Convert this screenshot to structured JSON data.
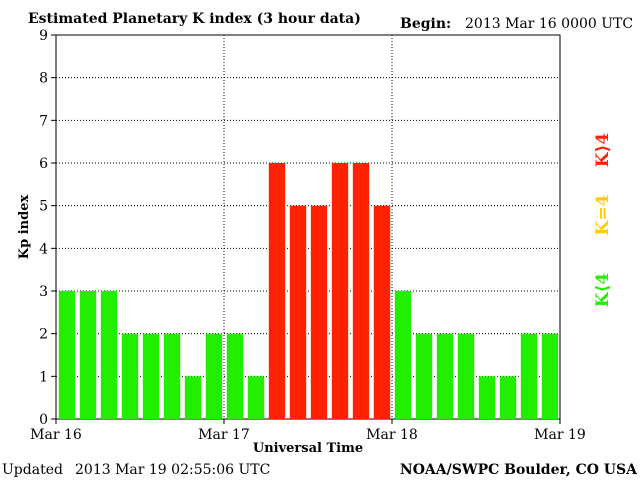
{
  "header": {
    "title": "Estimated Planetary K index (3 hour data)",
    "begin_label": "Begin:",
    "begin_value": "2013 Mar 16 0000 UTC"
  },
  "footer": {
    "updated_label": "Updated",
    "updated_value": "2013 Mar 19 02:55:06 UTC",
    "source": "NOAA/SWPC Boulder, CO USA"
  },
  "legend": {
    "high": "K⟩4",
    "mid": "K=4",
    "low": "K⟨4"
  },
  "colors": {
    "low": "#22ee00",
    "mid": "#ffcc00",
    "high": "#ff2200",
    "grid": "#000000",
    "text": "#000000"
  },
  "chart_data": {
    "type": "bar",
    "title": "Estimated Planetary K index (3 hour data)",
    "xlabel": "Universal Time",
    "ylabel": "Kp index",
    "ylim": [
      0,
      9
    ],
    "yticks": [
      0,
      1,
      2,
      3,
      4,
      5,
      6,
      7,
      8,
      9
    ],
    "xtick_labels": [
      "Mar 16",
      "Mar 17",
      "Mar 18",
      "Mar 19"
    ],
    "grid": true,
    "legend_position": "right",
    "values": [
      3,
      3,
      3,
      2,
      2,
      2,
      1,
      2,
      2,
      1,
      6,
      5,
      5,
      6,
      6,
      5,
      3,
      2,
      2,
      2,
      1,
      1,
      2,
      2
    ]
  }
}
